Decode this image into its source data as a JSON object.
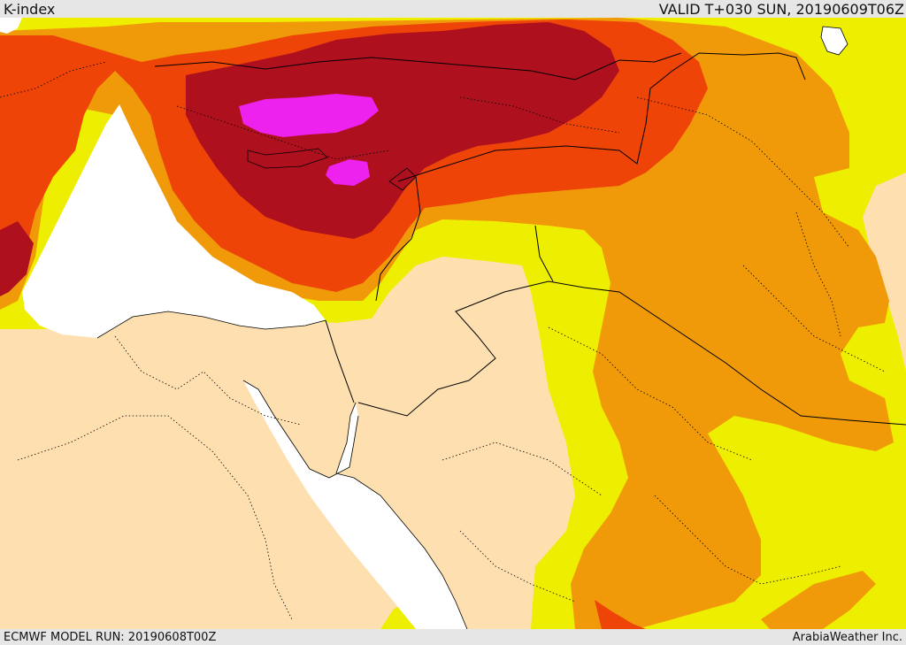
{
  "header": {
    "title": "K-index",
    "valid_time": "VALID T+030 SUN, 20190609T06Z"
  },
  "footer": {
    "model_run": "ECMWF MODEL RUN: 20190608T00Z",
    "credit": "ArabiaWeather Inc."
  },
  "palette": {
    "land_low": "#fddfb0",
    "level_yellow": "#eeee00",
    "level_orange": "#f09a0a",
    "level_red_orange": "#ee4408",
    "level_dark_red": "#ae101e",
    "level_magenta": "#ee22ee",
    "sea": "#ffffff",
    "borders": "#000000"
  }
}
